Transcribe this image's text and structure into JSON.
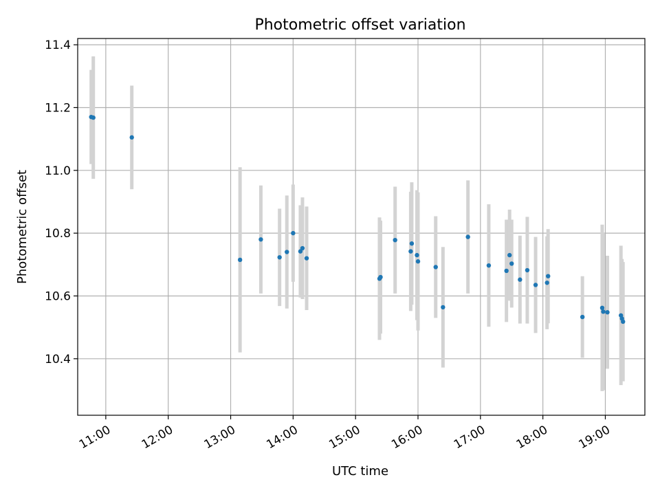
{
  "chart_data": {
    "type": "scatter",
    "title": "Photometric offset variation",
    "xlabel": "UTC time",
    "ylabel": "Photometric offset",
    "x_tick_labels": [
      "11:00",
      "12:00",
      "13:00",
      "14:00",
      "15:00",
      "16:00",
      "17:00",
      "18:00",
      "19:00"
    ],
    "y_tick_labels": [
      "10.4",
      "10.6",
      "10.8",
      "11.0",
      "11.2",
      "11.4"
    ],
    "y_ticks": [
      10.4,
      10.6,
      10.8,
      11.0,
      11.2,
      11.4
    ],
    "xlim": [
      "10:33",
      "19:38"
    ],
    "ylim": [
      10.22,
      11.42
    ],
    "grid": true,
    "marker_color": "#1f77b4",
    "errorbar_color": "#d3d3d3",
    "points": [
      {
        "time": "10:46",
        "value": 11.17,
        "err": 0.15
      },
      {
        "time": "10:48",
        "value": 11.168,
        "err": 0.195
      },
      {
        "time": "11:25",
        "value": 11.105,
        "err": 0.165
      },
      {
        "time": "13:09",
        "value": 10.715,
        "err": 0.295
      },
      {
        "time": "13:29",
        "value": 10.78,
        "err": 0.172
      },
      {
        "time": "13:47",
        "value": 10.723,
        "err": 0.155
      },
      {
        "time": "13:54",
        "value": 10.74,
        "err": 0.18
      },
      {
        "time": "14:00",
        "value": 10.8,
        "err": 0.155
      },
      {
        "time": "14:07",
        "value": 10.742,
        "err": 0.147
      },
      {
        "time": "14:09",
        "value": 10.752,
        "err": 0.162
      },
      {
        "time": "14:13",
        "value": 10.72,
        "err": 0.165
      },
      {
        "time": "15:23",
        "value": 10.655,
        "err": 0.195
      },
      {
        "time": "15:24",
        "value": 10.66,
        "err": 0.18
      },
      {
        "time": "15:38",
        "value": 10.778,
        "err": 0.17
      },
      {
        "time": "15:53",
        "value": 10.742,
        "err": 0.19
      },
      {
        "time": "15:54",
        "value": 10.767,
        "err": 0.195
      },
      {
        "time": "15:59",
        "value": 10.73,
        "err": 0.207
      },
      {
        "time": "16:00",
        "value": 10.71,
        "err": 0.22
      },
      {
        "time": "16:17",
        "value": 10.692,
        "err": 0.162
      },
      {
        "time": "16:24",
        "value": 10.564,
        "err": 0.192
      },
      {
        "time": "16:48",
        "value": 10.788,
        "err": 0.18
      },
      {
        "time": "17:08",
        "value": 10.697,
        "err": 0.195
      },
      {
        "time": "17:25",
        "value": 10.68,
        "err": 0.163
      },
      {
        "time": "17:28",
        "value": 10.73,
        "err": 0.145
      },
      {
        "time": "17:30",
        "value": 10.703,
        "err": 0.14
      },
      {
        "time": "17:38",
        "value": 10.652,
        "err": 0.14
      },
      {
        "time": "17:45",
        "value": 10.682,
        "err": 0.17
      },
      {
        "time": "17:53",
        "value": 10.635,
        "err": 0.153
      },
      {
        "time": "18:04",
        "value": 10.642,
        "err": 0.148
      },
      {
        "time": "18:05",
        "value": 10.663,
        "err": 0.15
      },
      {
        "time": "18:38",
        "value": 10.533,
        "err": 0.13
      },
      {
        "time": "18:57",
        "value": 10.562,
        "err": 0.265
      },
      {
        "time": "18:58",
        "value": 10.55,
        "err": 0.25
      },
      {
        "time": "19:02",
        "value": 10.548,
        "err": 0.18
      },
      {
        "time": "19:15",
        "value": 10.538,
        "err": 0.222
      },
      {
        "time": "19:16",
        "value": 10.528,
        "err": 0.19
      },
      {
        "time": "19:17",
        "value": 10.518,
        "err": 0.19
      }
    ]
  }
}
